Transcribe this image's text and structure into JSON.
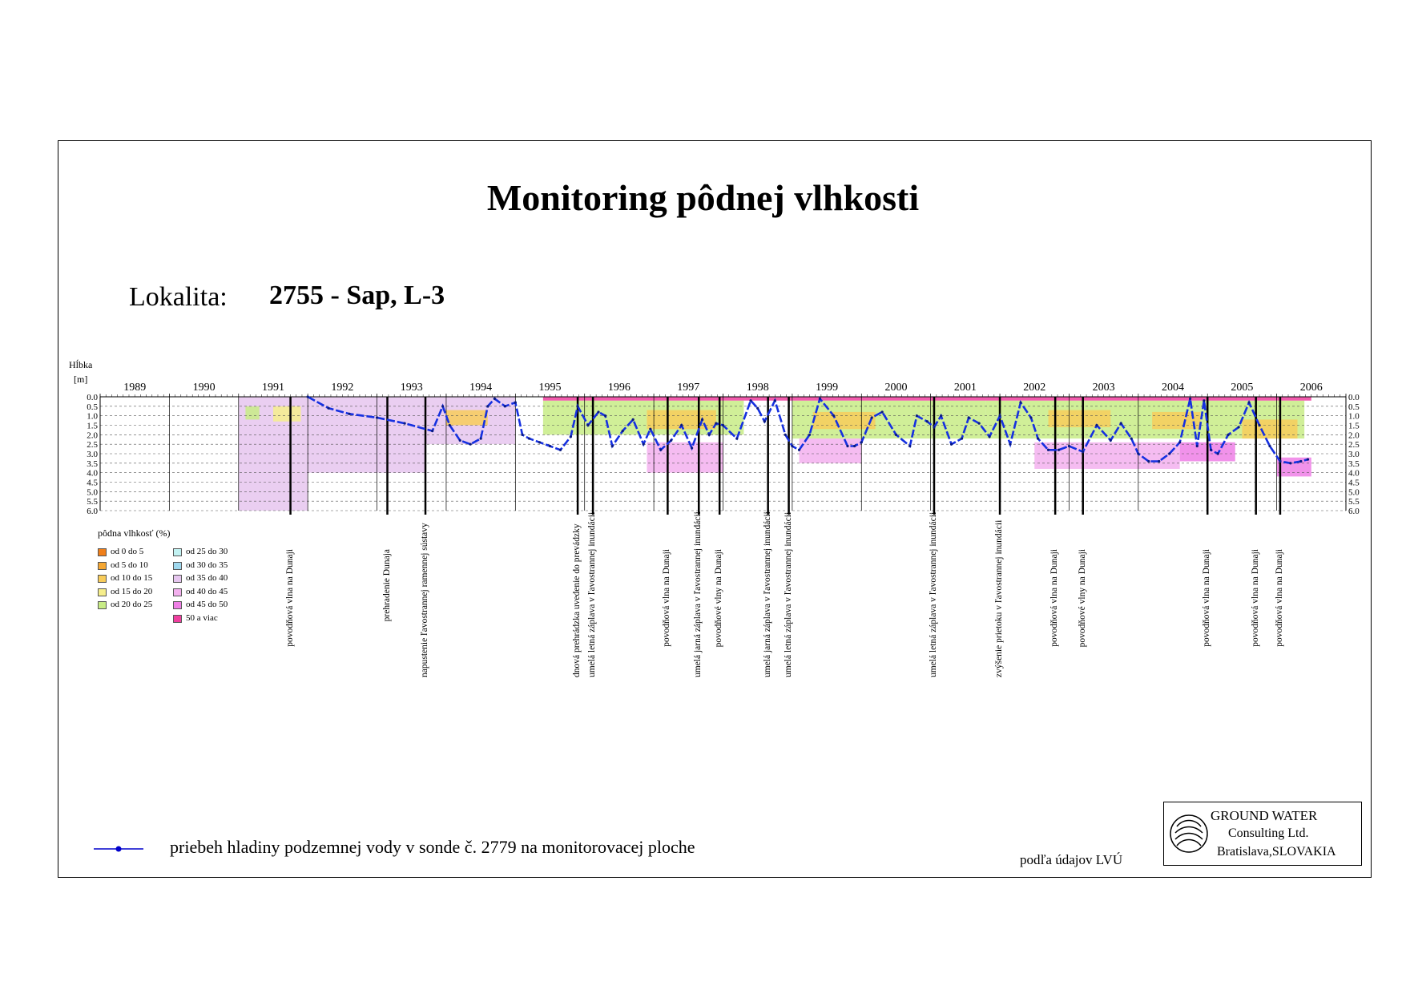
{
  "title": "Monitoring pôdnej vlhkosti",
  "locality_label": "Lokalita:",
  "locality_value": "2755 - Sap, L-3",
  "groundwater_legend": "priebeh hladiny podzemnej vody v sonde č. 2779 na monitorovacej ploche",
  "source_note": "podľa údajov LVÚ",
  "logo": {
    "line1": "GROUND WATER",
    "line2": "Consulting Ltd.",
    "line3": "Bratislava,SLOVAKIA"
  },
  "chart_data": {
    "type": "heatmap",
    "ylabel_line1": "Hĺbka",
    "ylabel_line2": "[m]",
    "years": [
      "1989",
      "1990",
      "1991",
      "1992",
      "1993",
      "1994",
      "1995",
      "1996",
      "1997",
      "1998",
      "1999",
      "2000",
      "2001",
      "2002",
      "2003",
      "2004",
      "2005",
      "2006"
    ],
    "x_range": [
      1989.0,
      2007.0
    ],
    "depth_ticks": [
      "0.0",
      "0.5",
      "1.0",
      "1.5",
      "2.0",
      "2.5",
      "3.0",
      "3.5",
      "4.0",
      "4.5",
      "5.0",
      "5.5",
      "6.0"
    ],
    "ylim": [
      0,
      6
    ],
    "legend_title": "pôdna vlhkosť (%)",
    "legend": [
      {
        "label": "od 0 do 5",
        "color": "#f07f1a"
      },
      {
        "label": "od 5 do 10",
        "color": "#f5a733"
      },
      {
        "label": "od 10 do 15",
        "color": "#f8cc5a"
      },
      {
        "label": "od 15 do 20",
        "color": "#f6ee8c"
      },
      {
        "label": "od 20 do 25",
        "color": "#c8ec86"
      },
      {
        "label": "od 25 do 30",
        "color": "#c2f2f2"
      },
      {
        "label": "od 30 do 35",
        "color": "#9fd8ee"
      },
      {
        "label": "od 35 do 40",
        "color": "#e6c6ef"
      },
      {
        "label": "od 40 do 45",
        "color": "#f3b0ee"
      },
      {
        "label": "od 45 do 50",
        "color": "#ef7fe6"
      },
      {
        "label": "50 a viac",
        "color": "#ef3f9f"
      }
    ],
    "moisture_blocks": [
      {
        "x0": 1991.0,
        "x1": 1992.0,
        "d0": 0.0,
        "d1": 6.0,
        "class": "od 35 do 40"
      },
      {
        "x0": 1992.0,
        "x1": 1993.7,
        "d0": 0.0,
        "d1": 4.0,
        "class": "od 35 do 40"
      },
      {
        "x0": 1991.1,
        "x1": 1991.3,
        "d0": 0.5,
        "d1": 1.2,
        "class": "od 20 do 25"
      },
      {
        "x0": 1991.5,
        "x1": 1991.9,
        "d0": 0.5,
        "d1": 1.3,
        "class": "od 15 do 20"
      },
      {
        "x0": 1993.7,
        "x1": 1995.0,
        "d0": 0.0,
        "d1": 2.5,
        "class": "od 35 do 40"
      },
      {
        "x0": 1994.0,
        "x1": 1994.6,
        "d0": 0.7,
        "d1": 1.5,
        "class": "od 10 do 15"
      },
      {
        "x0": 1995.4,
        "x1": 1998.3,
        "d0": 0.2,
        "d1": 2.0,
        "class": "od 20 do 25"
      },
      {
        "x0": 1996.9,
        "x1": 1997.9,
        "d0": 0.7,
        "d1": 1.7,
        "class": "od 10 do 15"
      },
      {
        "x0": 1999.0,
        "x1": 2001.8,
        "d0": 0.2,
        "d1": 2.2,
        "class": "od 20 do 25"
      },
      {
        "x0": 1999.3,
        "x1": 2000.2,
        "d0": 0.8,
        "d1": 1.7,
        "class": "od 10 do 15"
      },
      {
        "x0": 2001.8,
        "x1": 2006.4,
        "d0": 0.2,
        "d1": 2.2,
        "class": "od 20 do 25"
      },
      {
        "x0": 2002.7,
        "x1": 2003.6,
        "d0": 0.7,
        "d1": 1.6,
        "class": "od 10 do 15"
      },
      {
        "x0": 2004.2,
        "x1": 2004.9,
        "d0": 0.8,
        "d1": 1.7,
        "class": "od 10 do 15"
      },
      {
        "x0": 2005.5,
        "x1": 2006.3,
        "d0": 1.2,
        "d1": 2.2,
        "class": "od 10 do 15"
      },
      {
        "x0": 1995.4,
        "x1": 2006.5,
        "d0": 0.0,
        "d1": 0.2,
        "class": "50 a viac"
      },
      {
        "x0": 1996.9,
        "x1": 1998.0,
        "d0": 2.4,
        "d1": 4.0,
        "class": "od 40 do 45"
      },
      {
        "x0": 1999.1,
        "x1": 2000.0,
        "d0": 2.2,
        "d1": 3.5,
        "class": "od 40 do 45"
      },
      {
        "x0": 2002.5,
        "x1": 2004.6,
        "d0": 2.4,
        "d1": 3.8,
        "class": "od 40 do 45"
      },
      {
        "x0": 2004.6,
        "x1": 2005.4,
        "d0": 2.4,
        "d1": 3.4,
        "class": "od 45 do 50"
      },
      {
        "x0": 2006.0,
        "x1": 2006.5,
        "d0": 3.2,
        "d1": 4.2,
        "class": "od 45 do 50"
      }
    ],
    "groundwater_series": {
      "x": [
        1992.0,
        1992.3,
        1992.6,
        1993.0,
        1993.4,
        1993.8,
        1993.95,
        1994.05,
        1994.2,
        1994.35,
        1994.5,
        1994.6,
        1994.7,
        1994.85,
        1995.0,
        1995.1,
        1995.2,
        1995.35,
        1995.5,
        1995.65,
        1995.8,
        1995.9,
        1996.05,
        1996.2,
        1996.3,
        1996.4,
        1996.55,
        1996.7,
        1996.85,
        1996.95,
        1997.1,
        1997.25,
        1997.4,
        1997.55,
        1997.7,
        1997.8,
        1997.9,
        1998.0,
        1998.2,
        1998.4,
        1998.5,
        1998.6,
        1998.75,
        1998.9,
        1999.0,
        1999.1,
        1999.25,
        1999.4,
        1999.6,
        1999.8,
        1999.9,
        2000.0,
        2000.15,
        2000.3,
        2000.5,
        2000.7,
        2000.8,
        2000.95,
        2001.05,
        2001.15,
        2001.3,
        2001.45,
        2001.55,
        2001.7,
        2001.85,
        2002.0,
        2002.15,
        2002.3,
        2002.45,
        2002.55,
        2002.7,
        2002.85,
        2003.0,
        2003.2,
        2003.4,
        2003.6,
        2003.75,
        2003.9,
        2004.0,
        2004.15,
        2004.3,
        2004.45,
        2004.6,
        2004.75,
        2004.85,
        2004.95,
        2005.05,
        2005.15,
        2005.3,
        2005.45,
        2005.6,
        2005.75,
        2005.9,
        2006.05,
        2006.2,
        2006.35,
        2006.45
      ],
      "y": [
        0.0,
        0.6,
        0.9,
        1.1,
        1.4,
        1.8,
        0.5,
        1.5,
        2.3,
        2.5,
        2.2,
        0.5,
        0.1,
        0.5,
        0.3,
        2.0,
        2.2,
        2.4,
        2.6,
        2.8,
        2.1,
        0.5,
        1.5,
        0.8,
        1.0,
        2.6,
        1.8,
        1.2,
        2.5,
        1.7,
        2.8,
        2.3,
        1.5,
        2.7,
        1.2,
        2.0,
        1.4,
        1.5,
        2.2,
        0.2,
        0.6,
        1.3,
        0.2,
        2.0,
        2.6,
        2.8,
        2.0,
        0.1,
        1.0,
        2.6,
        2.6,
        2.4,
        1.1,
        0.8,
        2.0,
        2.6,
        1.0,
        1.3,
        1.6,
        1.0,
        2.5,
        2.2,
        1.1,
        1.4,
        2.1,
        1.0,
        2.5,
        0.3,
        1.1,
        2.2,
        2.8,
        2.8,
        2.6,
        2.9,
        1.5,
        2.3,
        1.4,
        2.2,
        3.0,
        3.4,
        3.4,
        3.0,
        2.4,
        0.1,
        2.6,
        0.2,
        2.8,
        3.0,
        2.0,
        1.6,
        0.3,
        1.5,
        2.6,
        3.4,
        3.5,
        3.4,
        3.3
      ]
    },
    "event_lines": [
      {
        "x": 1991.75,
        "label": "povodňová vlna na Dunaji",
        "bold": true
      },
      {
        "x": 1993.15,
        "label": "prehradenie Dunaja",
        "bold": true
      },
      {
        "x": 1993.7,
        "label": "napustenie ľavostrannej ramennej sústavy",
        "bold": true
      },
      {
        "x": 1995.9,
        "label": "dnová prehrádzka uvedenie do prevádzky",
        "bold": true
      },
      {
        "x": 1996.12,
        "label": "umelá letná záplava v ľavostrannej inundácii",
        "bold": true
      },
      {
        "x": 1997.2,
        "label": "povodňová vlna na Dunaji",
        "bold": true
      },
      {
        "x": 1997.65,
        "label": "umelá jarná záplava v ľavostrannej inundácii",
        "bold": true
      },
      {
        "x": 1997.95,
        "label": "povodňové vlny na Dunaji",
        "bold": true
      },
      {
        "x": 1998.65,
        "label": "umelá jarná záplava v ľavostrannej inundácii",
        "bold": true
      },
      {
        "x": 1998.95,
        "label": "umelá letná záplava v ľavostrannej inundácii",
        "bold": true
      },
      {
        "x": 2001.05,
        "label": "umelá letná záplava v ľavostrannej inundácii",
        "bold": true
      },
      {
        "x": 2002.0,
        "label": "zvýšenie prietoku v ľavostrannej inundácii",
        "bold": true
      },
      {
        "x": 2002.8,
        "label": "povodňová vlna na Dunaji",
        "bold": true
      },
      {
        "x": 2003.2,
        "label": "povodňové vlny na Dunaji",
        "bold": true
      },
      {
        "x": 2005.0,
        "label": "povodňová vlna na Dunaji",
        "bold": true
      },
      {
        "x": 2005.7,
        "label": "povodňová vlna na Dunaji",
        "bold": true
      },
      {
        "x": 2006.05,
        "label": "povodňová vlna na Dunaji",
        "bold": true
      }
    ]
  }
}
